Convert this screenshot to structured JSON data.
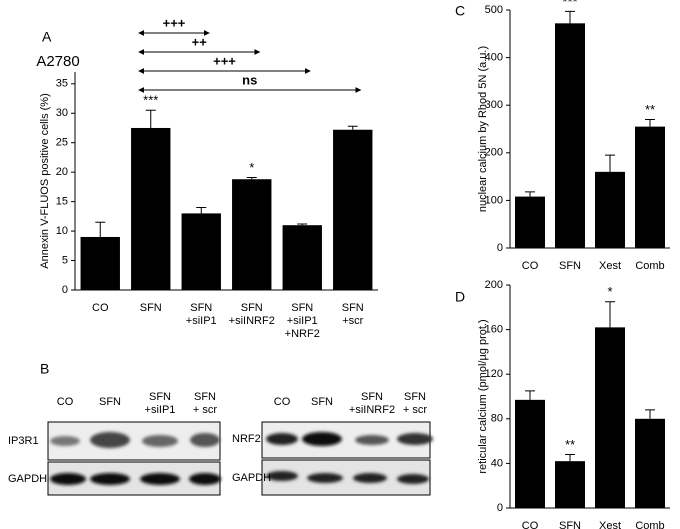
{
  "chart_data": [
    {
      "type": "bar",
      "panel": "A",
      "subtitle": "A2780",
      "ylabel": "Annexin V-FLUOS positive cells (%)",
      "categories": [
        [
          "CO"
        ],
        [
          "SFN"
        ],
        [
          "SFN",
          "+siIP1"
        ],
        [
          "SFN",
          "+siINRF2"
        ],
        [
          "SFN",
          "+siIP1",
          "+NRF2"
        ],
        [
          "SFN",
          "+scr"
        ]
      ],
      "values": [
        9,
        27.5,
        13,
        18.8,
        11,
        27.2
      ],
      "errors": [
        2.5,
        3,
        1,
        0.3,
        0.2,
        0.6
      ],
      "significance": [
        null,
        "***",
        null,
        "*",
        null,
        null
      ],
      "comparisons": [
        {
          "from": 1,
          "to": 2,
          "label": "+++"
        },
        {
          "from": 1,
          "to": 3,
          "label": "++"
        },
        {
          "from": 1,
          "to": 4,
          "label": "+++"
        },
        {
          "from": 1,
          "to": 5,
          "label": "ns"
        }
      ],
      "color": "#000000",
      "ylim": [
        0,
        37
      ],
      "yticks": [
        0,
        5,
        10,
        15,
        20,
        25,
        30,
        35
      ]
    },
    {
      "type": "bar",
      "panel": "C",
      "ylabel": "nuclear calcium by Rhod 5N (a.u.)",
      "categories": [
        "CO",
        "SFN",
        "Xest",
        "Comb"
      ],
      "values": [
        108,
        472,
        160,
        255
      ],
      "errors": [
        10,
        25,
        35,
        15
      ],
      "significance": [
        null,
        "***",
        null,
        "**"
      ],
      "color": "#000000",
      "ylim": [
        0,
        500
      ],
      "yticks": [
        0,
        100,
        200,
        300,
        400,
        500
      ]
    },
    {
      "type": "bar",
      "panel": "D",
      "ylabel": "reticular calcium (pmol/µg prot.)",
      "categories": [
        "CO",
        "SFN",
        "Xest",
        "Comb"
      ],
      "values": [
        97,
        42,
        162,
        80
      ],
      "errors": [
        8,
        6,
        23,
        8
      ],
      "significance": [
        null,
        "**",
        "*",
        null
      ],
      "color": "#000000",
      "ylim": [
        0,
        200
      ],
      "yticks": [
        0,
        40,
        80,
        120,
        160,
        200
      ]
    }
  ],
  "blot_panel": "B",
  "blots": [
    {
      "lanes": [
        [
          "CO"
        ],
        [
          "SFN"
        ],
        [
          "SFN",
          "+siIP1"
        ],
        [
          "SFN",
          "+ scr"
        ]
      ],
      "rows": [
        "IP3R1",
        "GAPDH"
      ]
    },
    {
      "lanes": [
        [
          "CO"
        ],
        [
          "SFN"
        ],
        [
          "SFN",
          "+siINRF2"
        ],
        [
          "SFN",
          "+ scr"
        ]
      ],
      "rows": [
        "NRF2",
        "GAPDH"
      ]
    }
  ]
}
